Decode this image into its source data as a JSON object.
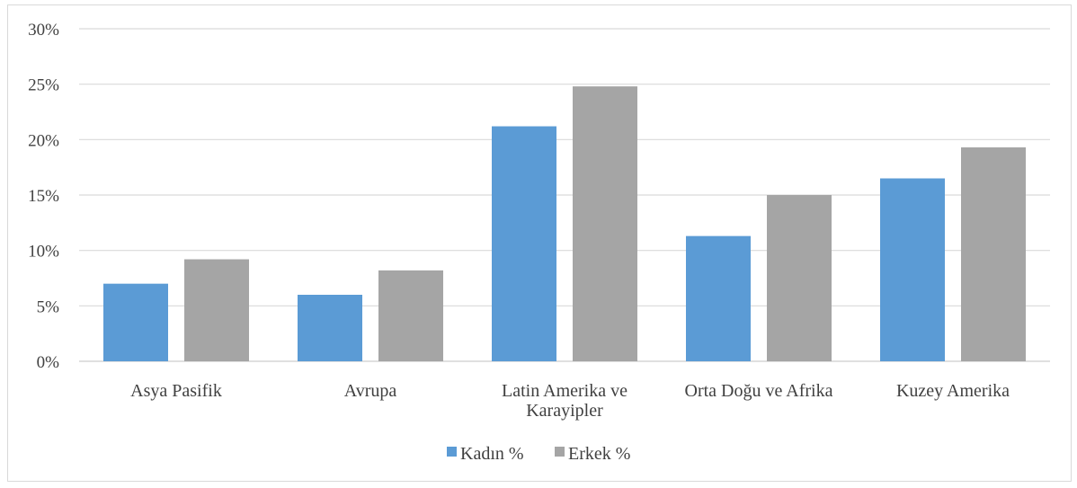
{
  "chart_data": {
    "type": "bar",
    "categories": [
      [
        "Asya Pasifik"
      ],
      [
        "Avrupa"
      ],
      [
        "Latin Amerika ve",
        "Karayipler"
      ],
      [
        "Orta Doğu ve Afrika"
      ],
      [
        "Kuzey Amerika"
      ]
    ],
    "series": [
      {
        "name": "Kadın %",
        "color": "#5b9bd5",
        "values": [
          7.0,
          6.0,
          21.2,
          11.3,
          16.5
        ]
      },
      {
        "name": "Erkek %",
        "color": "#a5a5a5",
        "values": [
          9.2,
          8.2,
          24.8,
          15.0,
          19.3
        ]
      }
    ],
    "y_ticks": [
      "0%",
      "5%",
      "10%",
      "15%",
      "20%",
      "25%",
      "30%"
    ],
    "ylim": [
      0,
      30
    ],
    "grid": true,
    "legend_position": "bottom",
    "gridline_color": "#d9d9d9",
    "text_color": "#404040"
  }
}
